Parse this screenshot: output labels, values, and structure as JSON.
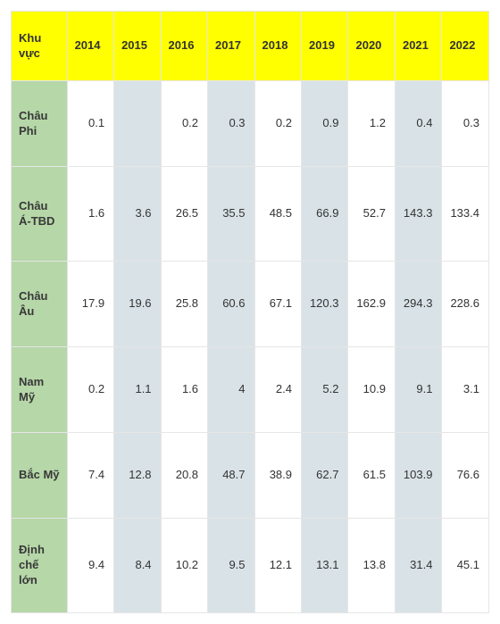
{
  "table": {
    "type": "table",
    "header_bg": "#ffff00",
    "header_fg": "#333333",
    "rowhead_bg": "#b6d7a8",
    "rowhead_fg": "#383838",
    "cell_fg": "#333333",
    "cell_bg_even": "#ffffff",
    "cell_bg_odd": "#d9e2e7",
    "border_color": "#e6e6e6",
    "region_label": "Khu vực",
    "columns": [
      "2014",
      "2015",
      "2016",
      "2017",
      "2018",
      "2019",
      "2020",
      "2021",
      "2022"
    ],
    "rows": [
      {
        "label": "Châu Phi",
        "cells": [
          "0.1",
          "",
          "0.2",
          "0.3",
          "0.2",
          "0.9",
          "1.2",
          "0.4",
          "0.3"
        ]
      },
      {
        "label": "Châu Á-TBD",
        "cells": [
          "1.6",
          "3.6",
          "26.5",
          "35.5",
          "48.5",
          "66.9",
          "52.7",
          "143.3",
          "133.4"
        ]
      },
      {
        "label": "Châu Âu",
        "cells": [
          "17.9",
          "19.6",
          "25.8",
          "60.6",
          "67.1",
          "120.3",
          "162.9",
          "294.3",
          "228.6"
        ]
      },
      {
        "label": "Nam Mỹ",
        "cells": [
          "0.2",
          "1.1",
          "1.6",
          "4",
          "2.4",
          "5.2",
          "10.9",
          "9.1",
          "3.1"
        ]
      },
      {
        "label": "Bắc Mỹ",
        "cells": [
          "7.4",
          "12.8",
          "20.8",
          "48.7",
          "38.9",
          "62.7",
          "61.5",
          "103.9",
          "76.6"
        ]
      },
      {
        "label": "Định chế lớn",
        "cells": [
          "9.4",
          "8.4",
          "10.2",
          "9.5",
          "12.1",
          "13.1",
          "13.8",
          "31.4",
          "45.1"
        ]
      }
    ]
  }
}
